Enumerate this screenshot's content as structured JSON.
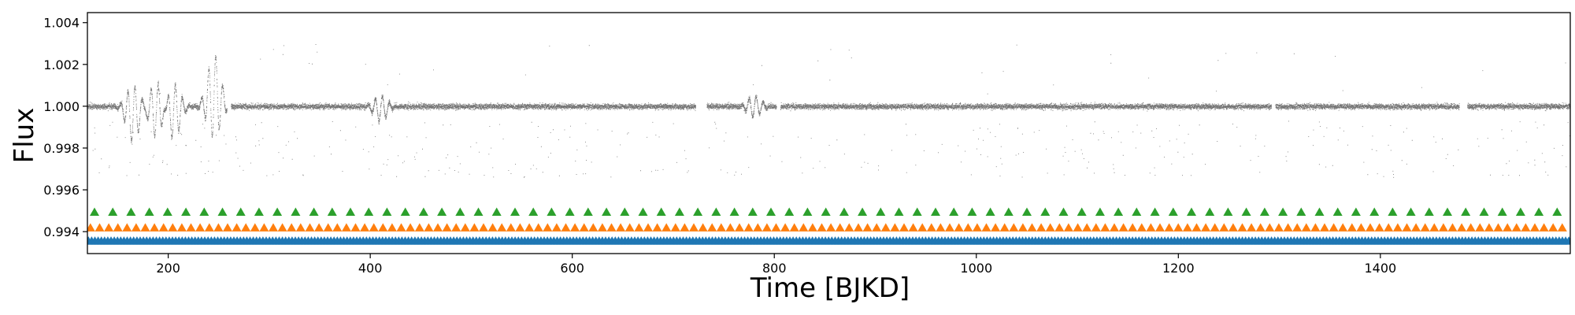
{
  "chart_data": {
    "type": "scatter",
    "title": "",
    "xlabel": "Time [BJKD]",
    "ylabel": "Flux",
    "xlim": [
      120,
      1588
    ],
    "ylim": [
      0.99295,
      1.00448
    ],
    "xticks": [
      200,
      400,
      600,
      800,
      1000,
      1200,
      1400
    ],
    "xtick_labels": [
      "200",
      "400",
      "600",
      "800",
      "1000",
      "1200",
      "1400"
    ],
    "yticks": [
      0.994,
      0.996,
      0.998,
      1.0,
      1.002,
      1.004
    ],
    "ytick_labels": [
      "0.994",
      "0.996",
      "0.998",
      "1.000",
      "1.002",
      "1.004"
    ],
    "grid": false,
    "legend": "none",
    "series": [
      {
        "kind": "light-curve",
        "marker": "dot",
        "color": "#000000",
        "baseline_flux": 1.0,
        "segments": [
          [
            120,
            258
          ],
          [
            262,
            722
          ],
          [
            733,
            802
          ],
          [
            806,
            1292
          ],
          [
            1296,
            1478
          ],
          [
            1486,
            1588
          ]
        ],
        "gaps": [
          [
            722,
            733
          ],
          [
            1478,
            1486
          ]
        ],
        "variability_features": [
          {
            "x": 165,
            "flux_min": 0.9983,
            "flux_max": 1.001
          },
          {
            "x": 188,
            "flux_min": 0.9985,
            "flux_max": 1.0012
          },
          {
            "x": 205,
            "flux_min": 0.9984,
            "flux_max": 1.0011
          },
          {
            "x": 245,
            "flux_min": 0.9985,
            "flux_max": 1.0025
          },
          {
            "x": 410,
            "flux_min": 0.9993,
            "flux_max": 1.0005
          },
          {
            "x": 780,
            "flux_min": 0.9995,
            "flux_max": 1.0005
          }
        ]
      },
      {
        "kind": "event-markers",
        "marker": "triangle-up",
        "color": "#2ca02c",
        "y": 0.99493,
        "x_start": 127,
        "x_end": 1578,
        "spacing": 18.1
      },
      {
        "kind": "event-markers",
        "marker": "triangle-up",
        "color": "#ff7f0e",
        "y": 0.99418,
        "x_start": 123,
        "x_end": 1584,
        "spacing": 9.05
      },
      {
        "kind": "event-markers",
        "marker": "triangle-up",
        "color": "#1f77b4",
        "y": 0.99355,
        "x_start": 121,
        "x_end": 1587,
        "spacing": 3.2
      }
    ]
  }
}
